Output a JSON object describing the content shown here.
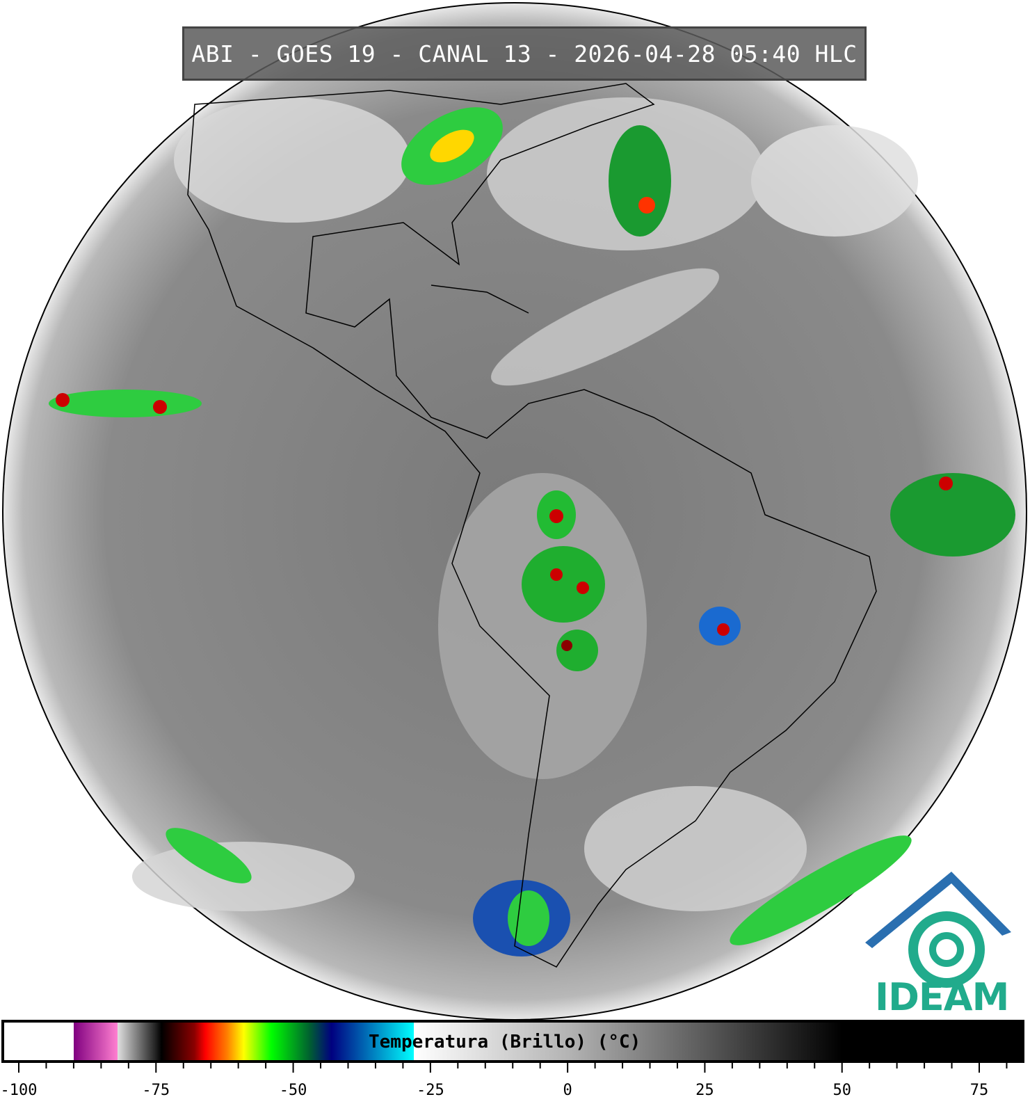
{
  "header": {
    "title": "ABI - GOES 19 - CANAL 13 - 2026-04-28 05:40 HLC"
  },
  "logo": {
    "text": "IDEAM",
    "color": "#21ab8c",
    "roof_color": "#2a6fb0"
  },
  "colorbar": {
    "label": "Temperatura (Brillo) (°C)",
    "range": [
      -100,
      85
    ],
    "major_ticks": [
      -100,
      -75,
      -50,
      -25,
      0,
      25,
      50,
      75
    ],
    "tick_labels": [
      "-100",
      "-75",
      "-50",
      "-25",
      "0",
      "25",
      "50",
      "75"
    ],
    "minor_step": 5,
    "stops": [
      {
        "t": -100,
        "color": "#ffffff"
      },
      {
        "t": -90,
        "color": "#ffffff"
      },
      {
        "t": -90,
        "color": "#800080"
      },
      {
        "t": -82,
        "color": "#ff80d0"
      },
      {
        "t": -82,
        "color": "#e0e0e0"
      },
      {
        "t": -75,
        "color": "#202020"
      },
      {
        "t": -74,
        "color": "#000000"
      },
      {
        "t": -68,
        "color": "#8b0000"
      },
      {
        "t": -66,
        "color": "#ff0000"
      },
      {
        "t": -62,
        "color": "#ff8000"
      },
      {
        "t": -59,
        "color": "#ffff00"
      },
      {
        "t": -54,
        "color": "#00ff00"
      },
      {
        "t": -47,
        "color": "#006030"
      },
      {
        "t": -43,
        "color": "#000080"
      },
      {
        "t": -28,
        "color": "#00ffff"
      },
      {
        "t": -28,
        "color": "#ffffff"
      },
      {
        "t": 0,
        "color": "#b4b4b4"
      },
      {
        "t": 25,
        "color": "#5a5a5a"
      },
      {
        "t": 50,
        "color": "#000000"
      },
      {
        "t": 85,
        "color": "#000000"
      }
    ]
  }
}
